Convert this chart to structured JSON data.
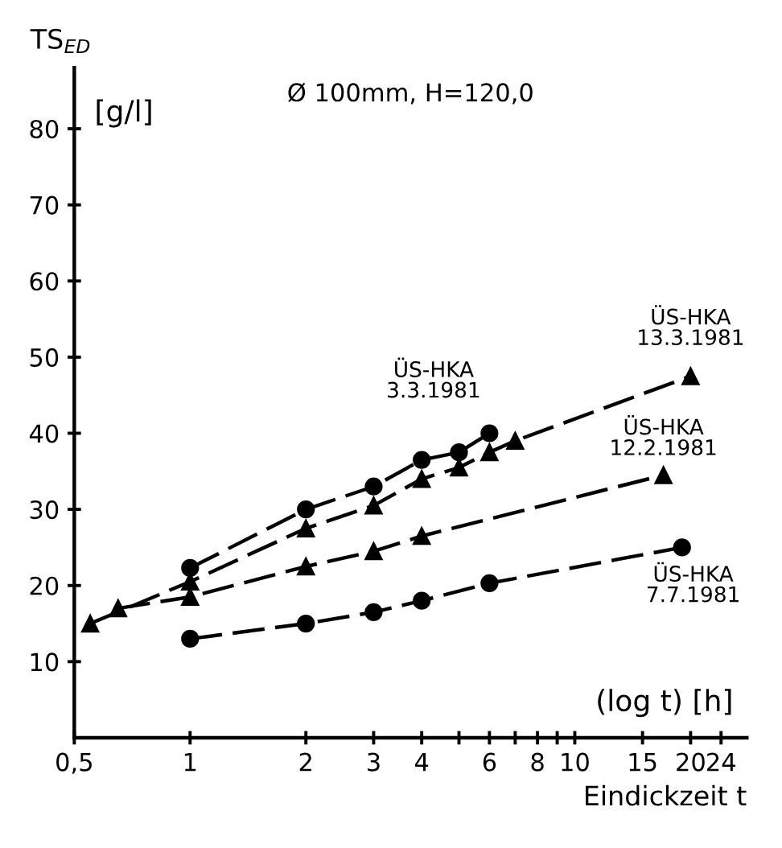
{
  "chart_data": {
    "type": "line",
    "title": "Ø 100mm, H=120,0",
    "xlabel": "Eindickzeit t",
    "ylabel": "TS$_{ED}$",
    "annotations": [
      "[g/l]",
      "(log t) [h]"
    ],
    "log": "x",
    "xlim": [
      0.5,
      28
    ],
    "ylim": [
      0,
      88
    ],
    "xticks": [
      {
        "value": 0.5,
        "label": "0,5"
      },
      1,
      2,
      3,
      4,
      {
        "value": 5,
        "label": null
      },
      6,
      {
        "value": 7,
        "label": null
      },
      8,
      {
        "value": 9,
        "label": null
      },
      10,
      15,
      20,
      24
    ],
    "yticks": [
      10,
      20,
      30,
      40,
      50,
      60,
      70,
      80
    ],
    "grid": false,
    "legend": false,
    "line_style": "dashed",
    "series": [
      {
        "name": "ÜS-HKA\n3.3.1981",
        "color": "#000000",
        "marker": "circle",
        "x": [
          1,
          2,
          3,
          4,
          5,
          6
        ],
        "values": [
          22.3,
          30,
          33,
          36.5,
          37.5,
          40
        ]
      },
      {
        "name": "ÜS-HKA\n13.3.1981",
        "color": "#000000",
        "marker": "triangle",
        "x": [
          0.55,
          1,
          2,
          3,
          4,
          5,
          6,
          7,
          20
        ],
        "values": [
          15,
          20.5,
          27.5,
          30.5,
          34,
          35.5,
          37.5,
          39,
          47.5
        ]
      },
      {
        "name": "ÜS-HKA\n12.2.1981",
        "color": "#000000",
        "marker": "triangle",
        "x": [
          0.65,
          1,
          2,
          3,
          4,
          17
        ],
        "values": [
          17,
          18.5,
          22.5,
          24.5,
          26.5,
          34.5
        ]
      },
      {
        "name": "ÜS-HKA\n7.7.1981",
        "color": "#000000",
        "marker": "circle",
        "x": [
          1,
          2,
          3,
          4,
          6,
          19
        ],
        "values": [
          13,
          15,
          16.5,
          18,
          20.3,
          25
        ]
      }
    ]
  }
}
